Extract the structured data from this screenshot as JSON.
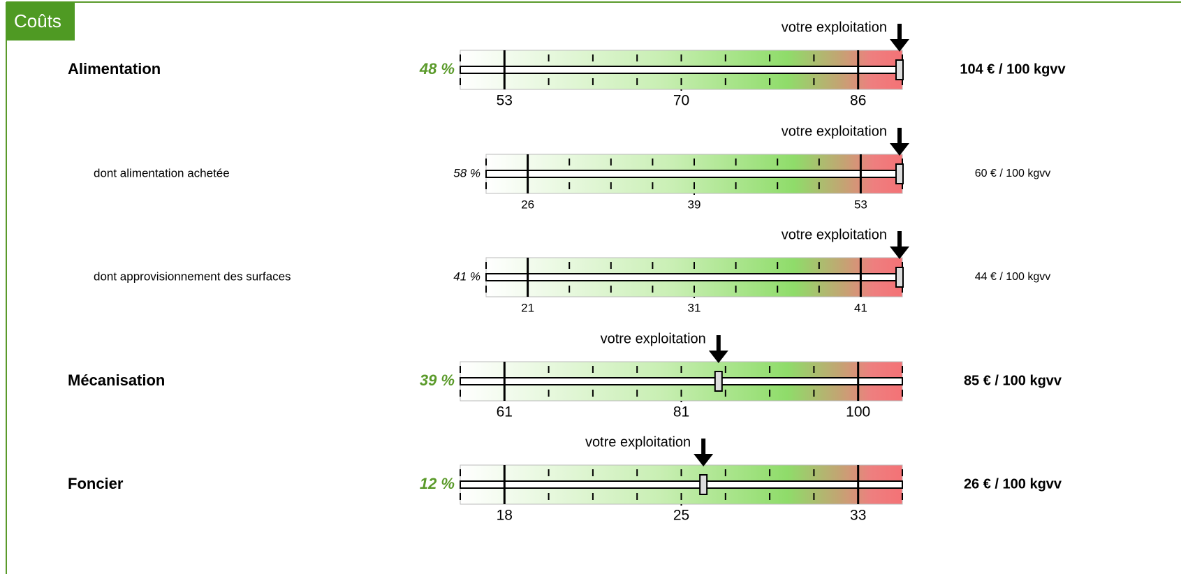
{
  "header": "Coûts",
  "chart_data": [
    {
      "type": "gauge",
      "title": "Alimentation",
      "emphasis": true,
      "percent_label": "48 %",
      "annotation": "votre exploitation",
      "value": 104,
      "value_label": "104 € / 100 kgvv",
      "xlim": [
        48.75,
        90
      ],
      "xticks": [
        53,
        70,
        86
      ]
    },
    {
      "type": "gauge",
      "title": "dont alimentation achetée",
      "emphasis": false,
      "percent_label": "58 %",
      "annotation": "votre exploitation",
      "value": 60,
      "value_label": "60 € / 100 kgvv",
      "xlim": [
        22.75,
        56.5
      ],
      "xticks": [
        26,
        39,
        53
      ]
    },
    {
      "type": "gauge",
      "title": "dont approvisionnement des surfaces",
      "emphasis": false,
      "percent_label": "41 %",
      "annotation": "votre exploitation",
      "value": 44,
      "value_label": "44 € / 100 kgvv",
      "xlim": [
        18.5,
        43.5
      ],
      "xticks": [
        21,
        31,
        41
      ]
    },
    {
      "type": "gauge",
      "title": "Mécanisation",
      "emphasis": true,
      "percent_label": "39 %",
      "annotation": "votre exploitation",
      "value": 85,
      "value_label": "85 € / 100 kgvv",
      "xlim": [
        56,
        104.75
      ],
      "xticks": [
        61,
        81,
        100
      ]
    },
    {
      "type": "gauge",
      "title": "Foncier",
      "emphasis": true,
      "percent_label": "12 %",
      "annotation": "votre exploitation",
      "value": 26,
      "value_label": "26 € / 100 kgvv",
      "xlim": [
        16.25,
        35
      ],
      "xticks": [
        18,
        25,
        33
      ]
    }
  ]
}
